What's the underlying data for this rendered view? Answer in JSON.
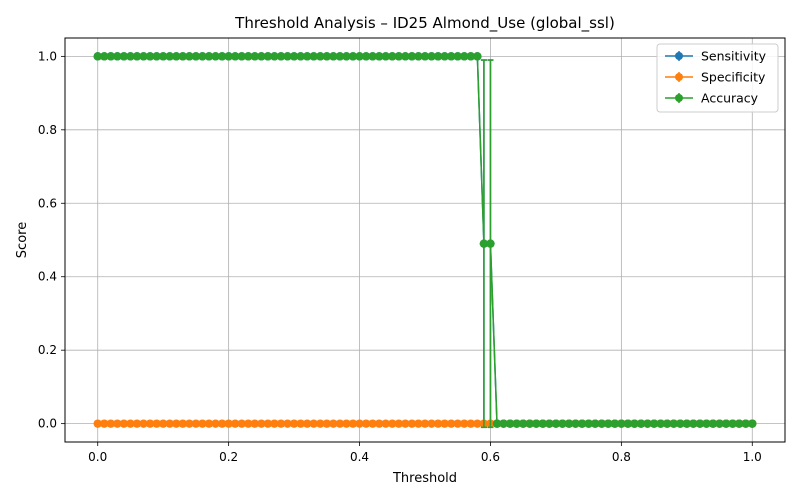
{
  "chart_data": {
    "type": "line",
    "title": "Threshold Analysis – ID25 Almond_Use (global_ssl)",
    "xlabel": "Threshold",
    "ylabel": "Score",
    "xlim": [
      -0.05,
      1.05
    ],
    "ylim": [
      -0.05,
      1.05
    ],
    "xticks": [
      "0.0",
      "0.2",
      "0.4",
      "0.6",
      "0.8",
      "1.0"
    ],
    "yticks": [
      "0.0",
      "0.2",
      "0.4",
      "0.6",
      "0.8",
      "1.0"
    ],
    "grid": true,
    "legend_position": "top-right",
    "x": [
      0.0,
      0.01,
      0.02,
      0.03,
      0.04,
      0.05,
      0.06,
      0.07,
      0.08,
      0.09,
      0.1,
      0.11,
      0.12,
      0.13,
      0.14,
      0.15,
      0.16,
      0.17,
      0.18,
      0.19,
      0.2,
      0.21,
      0.22,
      0.23,
      0.24,
      0.25,
      0.26,
      0.27,
      0.28,
      0.29,
      0.3,
      0.31,
      0.32,
      0.33,
      0.34,
      0.35,
      0.36,
      0.37,
      0.38,
      0.39,
      0.4,
      0.41,
      0.42,
      0.43,
      0.44,
      0.45,
      0.46,
      0.47,
      0.48,
      0.49,
      0.5,
      0.51,
      0.52,
      0.53,
      0.54,
      0.55,
      0.56,
      0.57,
      0.58,
      0.59,
      0.6,
      0.61,
      0.62,
      0.63,
      0.64,
      0.65,
      0.66,
      0.67,
      0.68,
      0.69,
      0.7,
      0.71,
      0.72,
      0.73,
      0.74,
      0.75,
      0.76,
      0.77,
      0.78,
      0.79,
      0.8,
      0.81,
      0.82,
      0.83,
      0.84,
      0.85,
      0.86,
      0.87,
      0.88,
      0.89,
      0.9,
      0.91,
      0.92,
      0.93,
      0.94,
      0.95,
      0.96,
      0.97,
      0.98,
      0.99,
      1.0
    ],
    "series": [
      {
        "name": "Sensitivity",
        "color": "#1f77b4",
        "values": [
          1,
          1,
          1,
          1,
          1,
          1,
          1,
          1,
          1,
          1,
          1,
          1,
          1,
          1,
          1,
          1,
          1,
          1,
          1,
          1,
          1,
          1,
          1,
          1,
          1,
          1,
          1,
          1,
          1,
          1,
          1,
          1,
          1,
          1,
          1,
          1,
          1,
          1,
          1,
          1,
          1,
          1,
          1,
          1,
          1,
          1,
          1,
          1,
          1,
          1,
          1,
          1,
          1,
          1,
          1,
          1,
          1,
          1,
          1,
          0.49,
          0.49,
          0,
          0,
          0,
          0,
          0,
          0,
          0,
          0,
          0,
          0,
          0,
          0,
          0,
          0,
          0,
          0,
          0,
          0,
          0,
          0,
          0,
          0,
          0,
          0,
          0,
          0,
          0,
          0,
          0,
          0,
          0,
          0,
          0,
          0,
          0,
          0,
          0,
          0,
          0,
          0
        ],
        "errors": {
          "0.59": 0.5,
          "0.60": 0.5
        }
      },
      {
        "name": "Specificity",
        "color": "#ff7f0e",
        "values": [
          0,
          0,
          0,
          0,
          0,
          0,
          0,
          0,
          0,
          0,
          0,
          0,
          0,
          0,
          0,
          0,
          0,
          0,
          0,
          0,
          0,
          0,
          0,
          0,
          0,
          0,
          0,
          0,
          0,
          0,
          0,
          0,
          0,
          0,
          0,
          0,
          0,
          0,
          0,
          0,
          0,
          0,
          0,
          0,
          0,
          0,
          0,
          0,
          0,
          0,
          0,
          0,
          0,
          0,
          0,
          0,
          0,
          0,
          0,
          0,
          0,
          0,
          0,
          0,
          0,
          0,
          0,
          0,
          0,
          0,
          0,
          0,
          0,
          0,
          0,
          0,
          0,
          0,
          0,
          0,
          0,
          0,
          0,
          0,
          0,
          0,
          0,
          0,
          0,
          0,
          0,
          0,
          0,
          0,
          0,
          0,
          0,
          0,
          0,
          0,
          0
        ]
      },
      {
        "name": "Accuracy",
        "color": "#2ca02c",
        "values": [
          1,
          1,
          1,
          1,
          1,
          1,
          1,
          1,
          1,
          1,
          1,
          1,
          1,
          1,
          1,
          1,
          1,
          1,
          1,
          1,
          1,
          1,
          1,
          1,
          1,
          1,
          1,
          1,
          1,
          1,
          1,
          1,
          1,
          1,
          1,
          1,
          1,
          1,
          1,
          1,
          1,
          1,
          1,
          1,
          1,
          1,
          1,
          1,
          1,
          1,
          1,
          1,
          1,
          1,
          1,
          1,
          1,
          1,
          1,
          0.49,
          0.49,
          0,
          0,
          0,
          0,
          0,
          0,
          0,
          0,
          0,
          0,
          0,
          0,
          0,
          0,
          0,
          0,
          0,
          0,
          0,
          0,
          0,
          0,
          0,
          0,
          0,
          0,
          0,
          0,
          0,
          0,
          0,
          0,
          0,
          0,
          0,
          0,
          0,
          0,
          0,
          0
        ],
        "errors": {
          "0.59": 0.5,
          "0.60": 0.5
        }
      }
    ]
  }
}
